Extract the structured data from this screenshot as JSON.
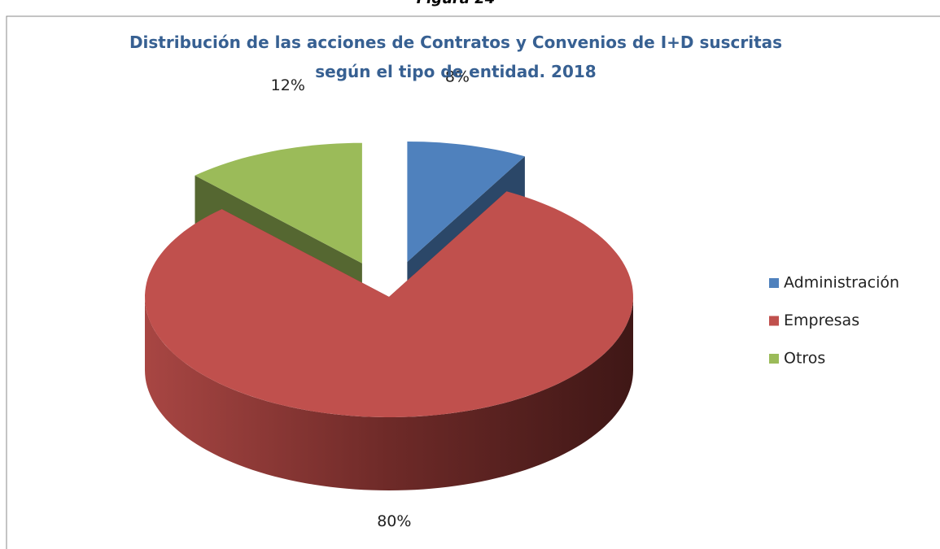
{
  "caption": "Figura 24",
  "chart_data": {
    "type": "pie",
    "title": "Distribución de las acciones de Contratos y Convenios de I+D suscritas según el tipo de entidad. 2018",
    "categories": [
      "Administración",
      "Empresas",
      "Otros"
    ],
    "values": [
      8,
      80,
      12
    ],
    "value_labels": [
      "8%",
      "80%",
      "12%"
    ],
    "colors": [
      "#4f81bd",
      "#c0504d",
      "#9bbb59"
    ],
    "exploded": [
      true,
      false,
      true
    ],
    "legend": "right"
  }
}
